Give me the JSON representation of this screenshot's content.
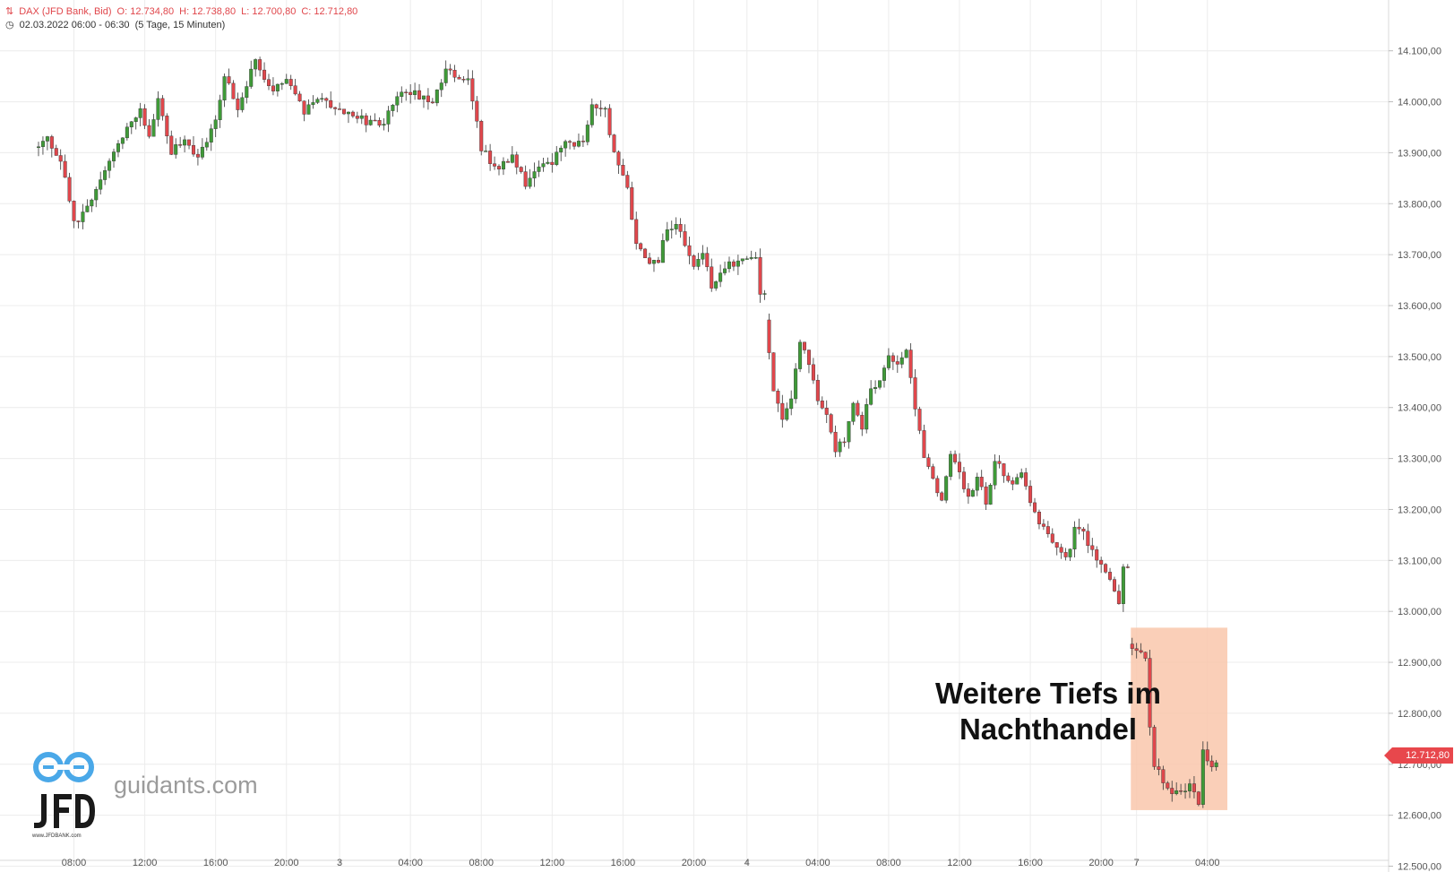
{
  "header": {
    "instrument": "DAX (JFD Bank, Bid)",
    "open": "O: 12.734,80",
    "high": "H: 12.738,80",
    "low": "L: 12.700,80",
    "close": "C: 12.712,80",
    "timestamp": "02.03.2022 06:00 - 06:30",
    "range": "(5 Tage, 15 Minuten)"
  },
  "annotation": {
    "line1": "Weitere Tiefs im",
    "line2": "Nachthandel"
  },
  "brand": {
    "url": "guidants.com",
    "logo_sub": "www.JFDBANK.com"
  },
  "price_tag": "12.712,80",
  "colors": {
    "up": "#3f9a38",
    "down": "#e0474c",
    "highlight": "#f9c7ac",
    "grid": "#ececec"
  },
  "chart_data": {
    "type": "candlestick",
    "title": "",
    "ylim": [
      12500,
      14150
    ],
    "y_ticks": [
      12500,
      12600,
      12700,
      12800,
      12900,
      13000,
      13100,
      13200,
      13300,
      13400,
      13500,
      13600,
      13700,
      13800,
      13900,
      14000,
      14100
    ],
    "y_tick_labels": [
      "12.500,00",
      "12.600,00",
      "12.700,00",
      "12.800,00",
      "12.900,00",
      "13.000,00",
      "13.100,00",
      "13.200,00",
      "13.300,00",
      "13.400,00",
      "13.500,00",
      "13.600,00",
      "13.700,00",
      "13.800,00",
      "13.900,00",
      "14.000,00",
      "14.100,00"
    ],
    "x_ticks": [
      {
        "label": "08:00",
        "i": 8
      },
      {
        "label": "12:00",
        "i": 24
      },
      {
        "label": "16:00",
        "i": 40
      },
      {
        "label": "20:00",
        "i": 56
      },
      {
        "label": "3",
        "i": 68
      },
      {
        "label": "04:00",
        "i": 84
      },
      {
        "label": "08:00",
        "i": 100
      },
      {
        "label": "12:00",
        "i": 116
      },
      {
        "label": "16:00",
        "i": 132
      },
      {
        "label": "20:00",
        "i": 148
      },
      {
        "label": "4",
        "i": 160
      },
      {
        "label": "04:00",
        "i": 176
      },
      {
        "label": "08:00",
        "i": 192
      },
      {
        "label": "12:00",
        "i": 208
      },
      {
        "label": "16:00",
        "i": 224
      },
      {
        "label": "20:00",
        "i": 240
      },
      {
        "label": "7",
        "i": 248
      },
      {
        "label": "04:00",
        "i": 264
      }
    ],
    "segments": [
      {
        "from": 0,
        "to": 164,
        "points": [
          [
            0,
            13910
          ],
          [
            3,
            13925
          ],
          [
            6,
            13890
          ],
          [
            9,
            13760
          ],
          [
            12,
            13790
          ],
          [
            16,
            13870
          ],
          [
            18,
            13900
          ],
          [
            21,
            13950
          ],
          [
            24,
            13985
          ],
          [
            26,
            13930
          ],
          [
            28,
            14010
          ],
          [
            31,
            13900
          ],
          [
            34,
            13930
          ],
          [
            37,
            13890
          ],
          [
            41,
            13960
          ],
          [
            43,
            14050
          ],
          [
            46,
            13990
          ],
          [
            50,
            14080
          ],
          [
            54,
            14020
          ],
          [
            57,
            14040
          ],
          [
            61,
            13980
          ],
          [
            64,
            14010
          ],
          [
            68,
            13990
          ],
          [
            71,
            13980
          ],
          [
            75,
            13960
          ],
          [
            79,
            13960
          ],
          [
            82,
            14010
          ],
          [
            86,
            14015
          ],
          [
            90,
            14005
          ],
          [
            93,
            14060
          ],
          [
            98,
            14045
          ],
          [
            101,
            13910
          ],
          [
            104,
            13870
          ],
          [
            108,
            13890
          ],
          [
            111,
            13840
          ],
          [
            114,
            13870
          ],
          [
            117,
            13880
          ],
          [
            120,
            13920
          ],
          [
            124,
            13920
          ],
          [
            126,
            14000
          ],
          [
            129,
            13980
          ],
          [
            131,
            13900
          ],
          [
            134,
            13830
          ],
          [
            136,
            13720
          ],
          [
            139,
            13690
          ],
          [
            141,
            13690
          ],
          [
            143,
            13750
          ],
          [
            145,
            13760
          ],
          [
            147,
            13720
          ],
          [
            149,
            13680
          ],
          [
            151,
            13700
          ],
          [
            153,
            13640
          ],
          [
            155,
            13660
          ],
          [
            157,
            13680
          ],
          [
            159,
            13690
          ],
          [
            161,
            13700
          ],
          [
            163,
            13700
          ],
          [
            164,
            13620
          ]
        ]
      },
      {
        "from": 165,
        "to": 246,
        "points": [
          [
            165,
            13570
          ],
          [
            167,
            13440
          ],
          [
            169,
            13380
          ],
          [
            171,
            13420
          ],
          [
            173,
            13530
          ],
          [
            175,
            13480
          ],
          [
            177,
            13420
          ],
          [
            179,
            13390
          ],
          [
            181,
            13320
          ],
          [
            183,
            13340
          ],
          [
            185,
            13410
          ],
          [
            187,
            13360
          ],
          [
            189,
            13440
          ],
          [
            191,
            13450
          ],
          [
            193,
            13500
          ],
          [
            195,
            13480
          ],
          [
            197,
            13520
          ],
          [
            199,
            13400
          ],
          [
            201,
            13300
          ],
          [
            203,
            13260
          ],
          [
            205,
            13220
          ],
          [
            207,
            13310
          ],
          [
            209,
            13270
          ],
          [
            211,
            13220
          ],
          [
            213,
            13270
          ],
          [
            215,
            13210
          ],
          [
            217,
            13300
          ],
          [
            219,
            13270
          ],
          [
            221,
            13250
          ],
          [
            223,
            13280
          ],
          [
            225,
            13210
          ],
          [
            227,
            13170
          ],
          [
            229,
            13150
          ],
          [
            231,
            13120
          ],
          [
            233,
            13100
          ],
          [
            235,
            13160
          ],
          [
            237,
            13150
          ],
          [
            239,
            13120
          ],
          [
            241,
            13090
          ],
          [
            243,
            13060
          ],
          [
            245,
            13010
          ],
          [
            246,
            13090
          ]
        ]
      },
      {
        "from": 247,
        "to": 266,
        "points": [
          [
            247,
            12940
          ],
          [
            249,
            12925
          ],
          [
            251,
            12915
          ],
          [
            252,
            12780
          ],
          [
            253,
            12700
          ],
          [
            255,
            12670
          ],
          [
            257,
            12635
          ],
          [
            259,
            12650
          ],
          [
            261,
            12660
          ],
          [
            263,
            12625
          ],
          [
            264,
            12725
          ],
          [
            266,
            12700
          ]
        ]
      }
    ],
    "last_price": 12712.8,
    "highlight": {
      "i_from": 246.7,
      "i_to": 268.5,
      "y_from": 12610,
      "y_to": 12968
    }
  }
}
